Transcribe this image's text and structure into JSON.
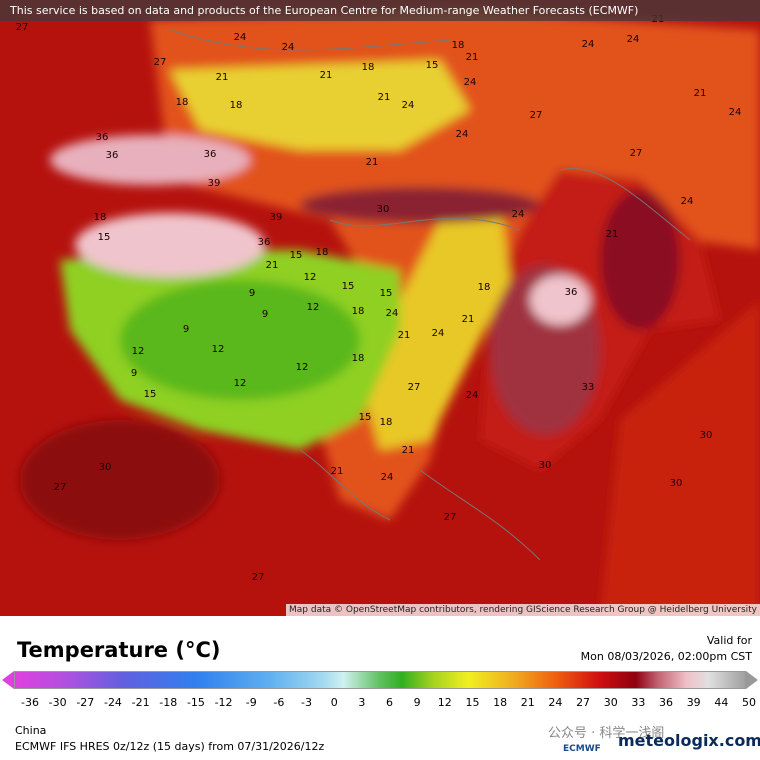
{
  "header": {
    "notice": "This service is based on data and products of the European Centre for Medium-range Weather Forecasts (ECMWF)"
  },
  "map": {
    "attribution": "Map data © OpenStreetMap contributors, rendering GIScience Research Group @ Heidelberg University",
    "labels": [
      27,
      24,
      24,
      18,
      21,
      21,
      24,
      24,
      27,
      21,
      18,
      15,
      24,
      21,
      18,
      18,
      21,
      24,
      27,
      24,
      21,
      24,
      36,
      36,
      39,
      36,
      21,
      30,
      27,
      39,
      36,
      18,
      15,
      21,
      15,
      18,
      12,
      15,
      9,
      9,
      12,
      15,
      24,
      18,
      12,
      9,
      12,
      12,
      9,
      15,
      12,
      18,
      21,
      24,
      21,
      18,
      24,
      36,
      21,
      24,
      30,
      33,
      27,
      21,
      24,
      21,
      15,
      18,
      27,
      30,
      27,
      30,
      30,
      27,
      24
    ]
  },
  "footer": {
    "title": "Temperature (°C)",
    "valid_label": "Valid for",
    "valid_time": "Mon 08/03/2026, 02:00pm CST",
    "legend": {
      "ticks": [
        -36,
        -30,
        -27,
        -24,
        -21,
        -18,
        -15,
        -12,
        -9,
        -6,
        -3,
        0,
        3,
        6,
        9,
        12,
        15,
        18,
        21,
        24,
        27,
        30,
        33,
        36,
        39,
        44,
        50
      ]
    },
    "region": "China",
    "model": "ECMWF IFS HRES 0z/12z (15 days) from 07/31/2026/12z",
    "watermark": "公众号 · 科学一浅阁",
    "brand": "meteologix.com",
    "logo": "ECMWF"
  }
}
